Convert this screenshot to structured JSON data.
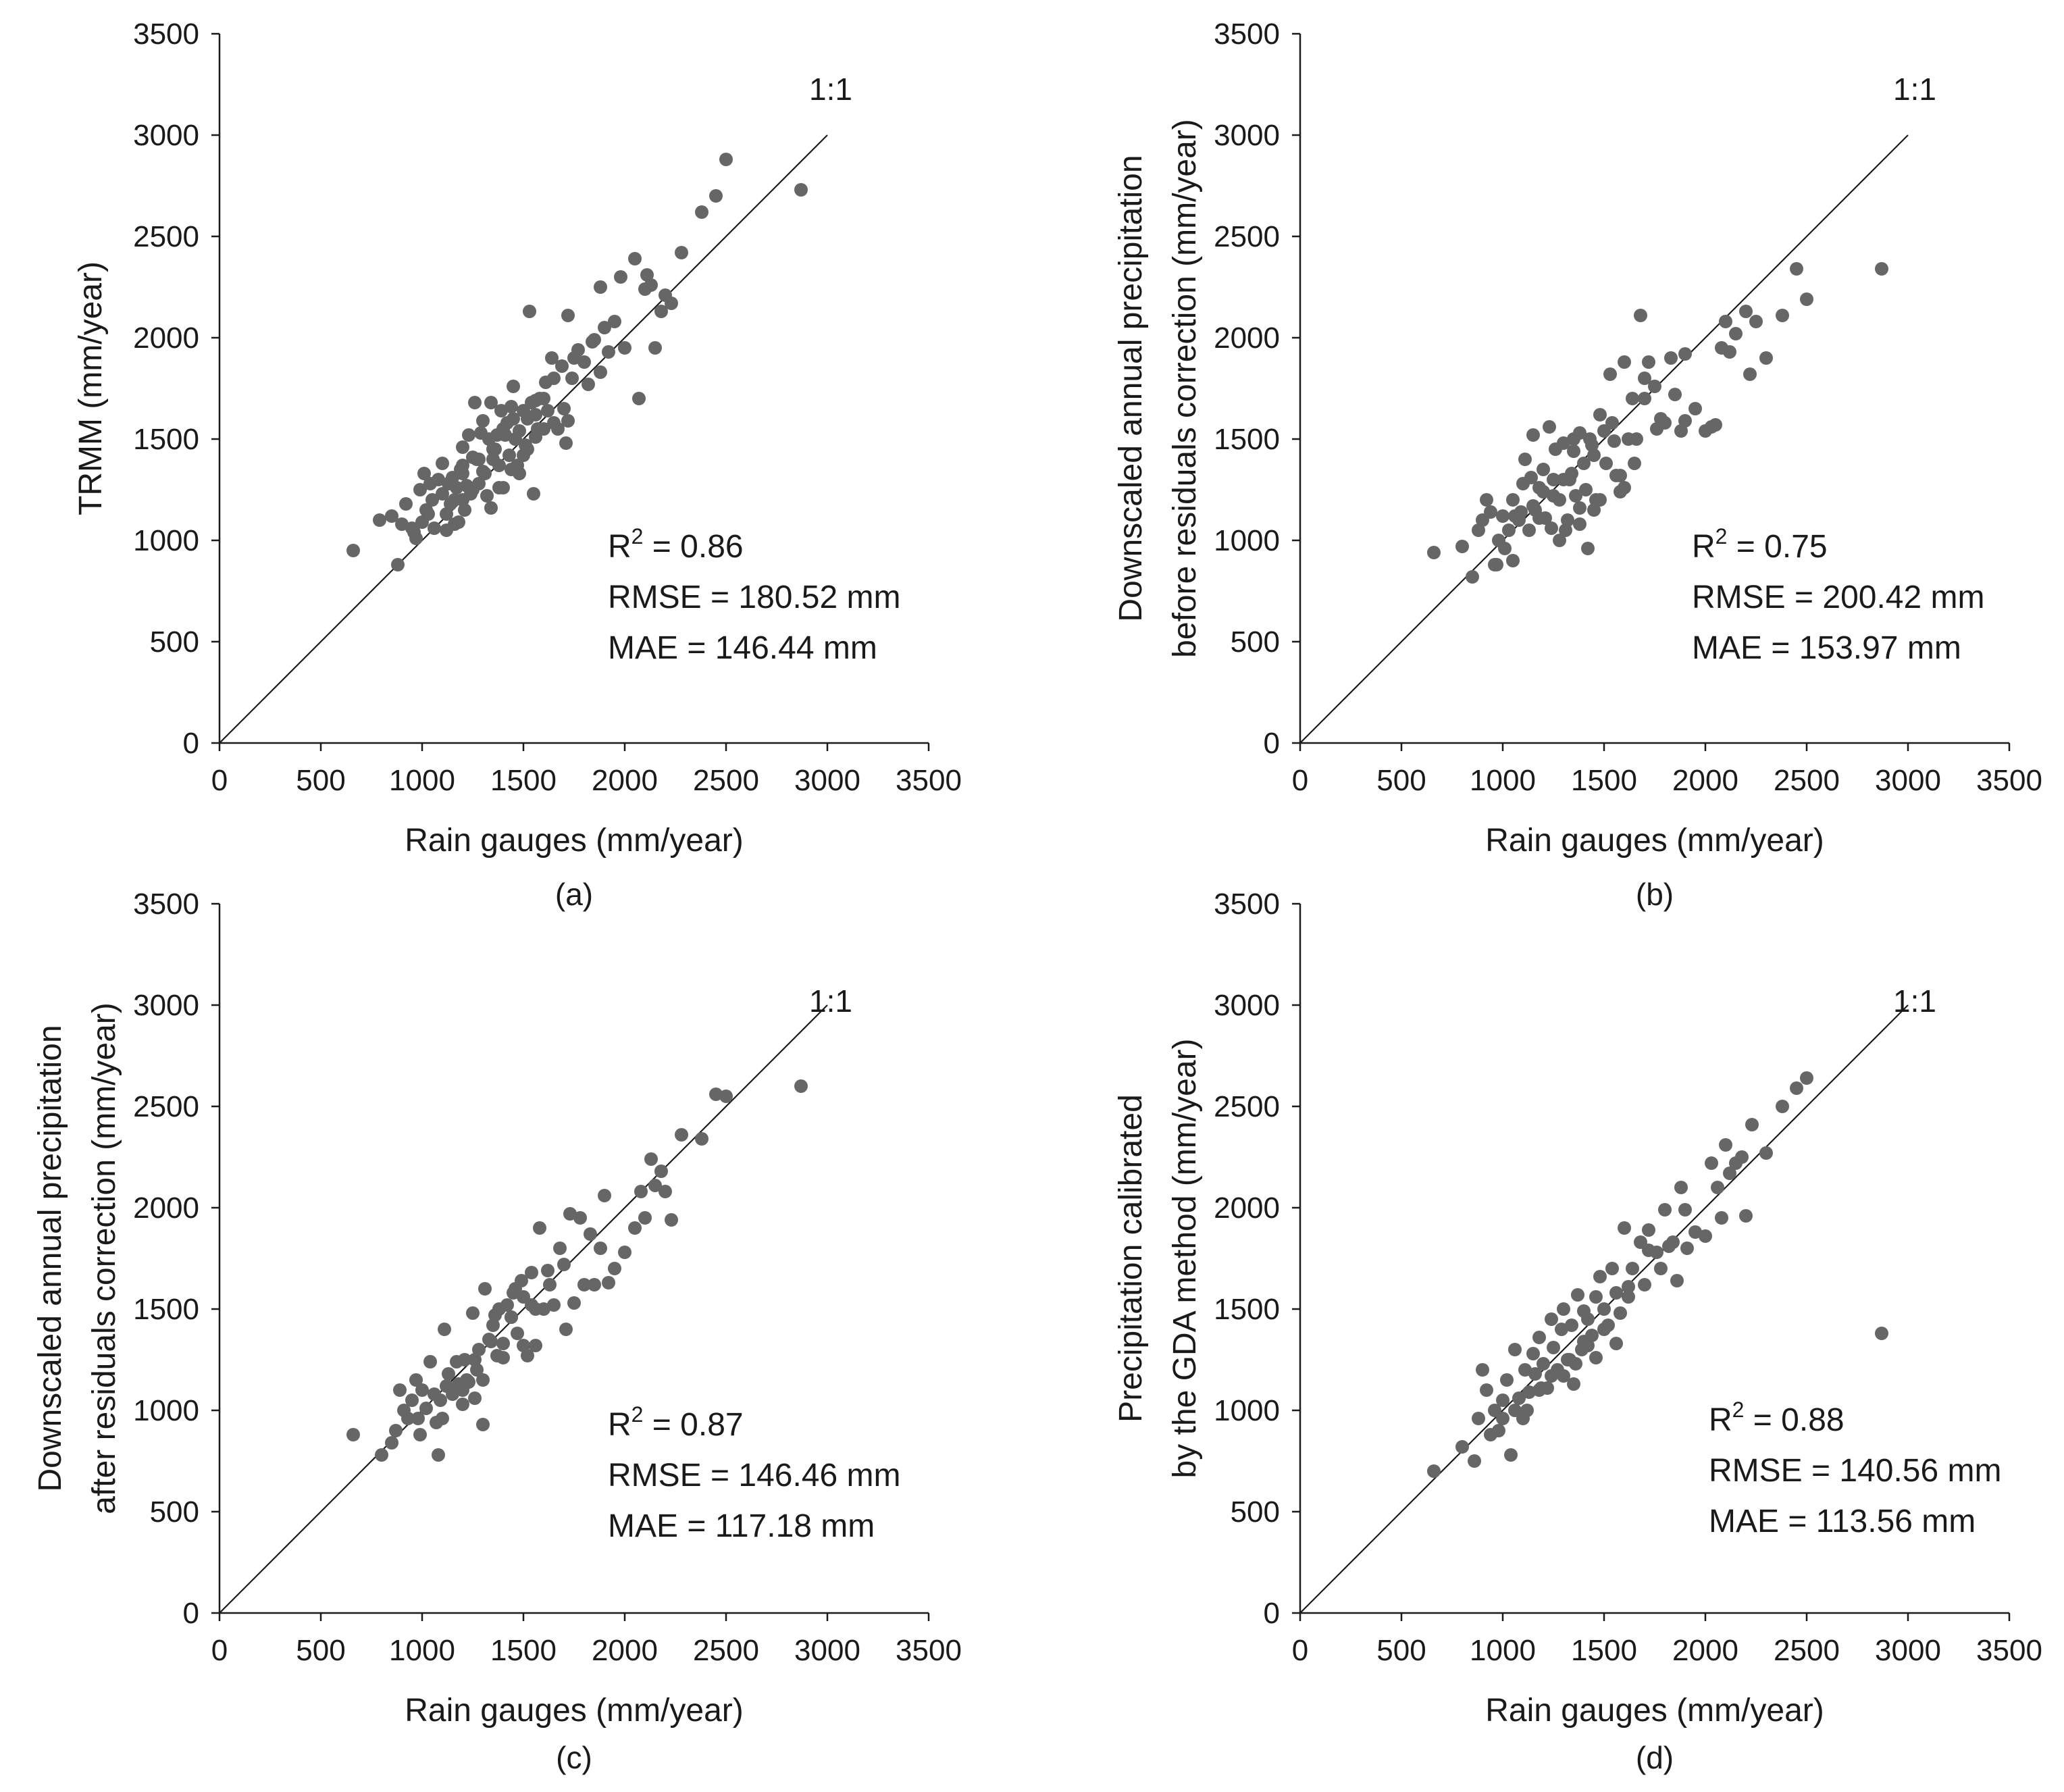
{
  "chart_data": [
    {
      "type": "scatter",
      "panel_label": "(a)",
      "xlabel": "Rain gauges (mm/year)",
      "ylabel": [
        "TRMM (mm/year)"
      ],
      "xlim": [
        0,
        3500
      ],
      "ylim": [
        0,
        3500
      ],
      "xticks": [
        "0",
        "500",
        "1000",
        "1500",
        "2000",
        "2500",
        "3000",
        "3500"
      ],
      "yticks": [
        "0",
        "500",
        "1000",
        "1500",
        "2000",
        "2500",
        "3000",
        "3500"
      ],
      "reference_line": {
        "label": "1:1",
        "from": [
          0,
          0
        ],
        "to": [
          3000,
          3000
        ]
      },
      "stats": {
        "r2_label": "R",
        "r2_exp": "2",
        "r2_value": " = 0.86",
        "rmse": "RMSE = 180.52 mm",
        "mae": "MAE = 146.44 mm"
      },
      "point_color": "#666666",
      "x": [
        660,
        790,
        850,
        880,
        900,
        920,
        950,
        970,
        990,
        1000,
        1010,
        1020,
        1040,
        1050,
        1060,
        1080,
        1100,
        1100,
        1120,
        1130,
        1150,
        1160,
        1170,
        1180,
        1190,
        1200,
        1200,
        1210,
        1230,
        1240,
        1250,
        1260,
        1270,
        1280,
        1290,
        1300,
        1310,
        1320,
        1330,
        1340,
        1350,
        1360,
        1370,
        1380,
        1390,
        1400,
        1410,
        1420,
        1430,
        1440,
        1450,
        1460,
        1470,
        1480,
        1500,
        1510,
        1520,
        1530,
        1540,
        1550,
        1560,
        1570,
        1580,
        1600,
        1610,
        1620,
        1640,
        1650,
        1670,
        1690,
        1700,
        1710,
        1720,
        1740,
        1750,
        1770,
        1800,
        1820,
        1840,
        1850,
        1880,
        1900,
        1920,
        1950,
        1980,
        2000,
        2050,
        2070,
        2100,
        2110,
        2130,
        2150,
        2180,
        2200,
        2230,
        2280,
        2380,
        2450,
        2500,
        2870,
        1200,
        1250,
        1350,
        1400,
        1450,
        1600,
        1650,
        1300,
        1380,
        1140,
        1220,
        1480,
        1560,
        1720,
        1030,
        1160,
        1560,
        1200,
        1120,
        1440,
        1500,
        1280,
        960,
        1880,
        1340,
        1520
      ],
      "y": [
        950,
        1100,
        1120,
        880,
        1080,
        1180,
        1060,
        1010,
        1250,
        1090,
        1330,
        1150,
        1280,
        1200,
        1060,
        1300,
        1230,
        1380,
        1130,
        1280,
        1310,
        1200,
        1260,
        1090,
        1350,
        1330,
        1460,
        1150,
        1520,
        1230,
        1410,
        1680,
        1400,
        1280,
        1530,
        1590,
        1330,
        1220,
        1500,
        1680,
        1400,
        1450,
        1520,
        1370,
        1640,
        1260,
        1520,
        1580,
        1420,
        1660,
        1760,
        1500,
        1370,
        1540,
        1640,
        1470,
        1600,
        2130,
        1680,
        1230,
        1620,
        1550,
        1700,
        1700,
        1780,
        1640,
        1900,
        1800,
        1550,
        1860,
        1650,
        1480,
        2110,
        1800,
        1900,
        1940,
        1880,
        1770,
        1980,
        1990,
        2250,
        2050,
        1930,
        2080,
        2300,
        1950,
        2390,
        1700,
        2240,
        2310,
        2260,
        1950,
        2130,
        2210,
        2170,
        2420,
        2620,
        2700,
        2880,
        2730,
        1370,
        1250,
        1450,
        1550,
        1600,
        1550,
        1580,
        1340,
        1260,
        1180,
        1270,
        1330,
        1690,
        1590,
        1130,
        1080,
        1510,
        1200,
        1050,
        1350,
        1420,
        1400,
        1040,
        1830,
        1160,
        1450
      ]
    },
    {
      "type": "scatter",
      "panel_label": "(b)",
      "xlabel": "Rain gauges (mm/year)",
      "ylabel": [
        "Downscaled annual precipitation",
        "before residuals correction (mm/year)"
      ],
      "xlim": [
        0,
        3500
      ],
      "ylim": [
        0,
        3500
      ],
      "xticks": [
        "0",
        "500",
        "1000",
        "1500",
        "2000",
        "2500",
        "3000",
        "3500"
      ],
      "yticks": [
        "0",
        "500",
        "1000",
        "1500",
        "2000",
        "2500",
        "3000",
        "3500"
      ],
      "reference_line": {
        "label": "1:1",
        "from": [
          0,
          0
        ],
        "to": [
          3000,
          3000
        ]
      },
      "stats": {
        "r2_label": "R",
        "r2_exp": "2",
        "r2_value": " = 0.75",
        "rmse": "RMSE = 200.42 mm",
        "mae": "MAE = 153.97 mm"
      },
      "point_color": "#666666",
      "x": [
        660,
        800,
        850,
        880,
        900,
        920,
        940,
        960,
        980,
        1000,
        1010,
        1030,
        1050,
        1080,
        1100,
        1110,
        1130,
        1150,
        1160,
        1180,
        1200,
        1210,
        1230,
        1250,
        1260,
        1280,
        1300,
        1310,
        1330,
        1350,
        1360,
        1380,
        1400,
        1410,
        1430,
        1450,
        1460,
        1480,
        1500,
        1510,
        1530,
        1550,
        1560,
        1580,
        1600,
        1620,
        1640,
        1660,
        1680,
        1700,
        1720,
        1750,
        1760,
        1780,
        1800,
        1830,
        1850,
        1880,
        1900,
        1950,
        2000,
        2050,
        2080,
        2100,
        2120,
        2150,
        2200,
        2220,
        2250,
        2300,
        2380,
        2450,
        2500,
        2870,
        1240,
        1320,
        1420,
        1180,
        1280,
        1380,
        1480,
        1580,
        1060,
        1140,
        1340,
        1440,
        1540,
        970,
        1090,
        1200,
        1300,
        1150,
        1250,
        1350,
        1450,
        1050,
        1600,
        1700,
        1900,
        2030,
        1650,
        1380
      ],
      "y": [
        940,
        970,
        820,
        1050,
        1100,
        1200,
        1140,
        880,
        1000,
        1120,
        960,
        1050,
        1200,
        1100,
        1280,
        1400,
        1050,
        1520,
        1150,
        1260,
        1350,
        1110,
        1560,
        1300,
        1450,
        1200,
        1480,
        1050,
        1300,
        1500,
        1220,
        1530,
        1380,
        1250,
        1500,
        1420,
        1200,
        1620,
        1540,
        1380,
        1820,
        1490,
        1320,
        1240,
        1880,
        1500,
        1700,
        1500,
        2110,
        1800,
        1880,
        1760,
        1550,
        1600,
        1580,
        1900,
        1720,
        1540,
        1920,
        1650,
        1540,
        1570,
        1950,
        2080,
        1930,
        2020,
        2130,
        1820,
        2080,
        1900,
        2110,
        2340,
        2190,
        2340,
        1060,
        1100,
        960,
        1110,
        1000,
        1080,
        1200,
        1320,
        1120,
        1310,
        1330,
        1470,
        1580,
        880,
        1140,
        1240,
        1300,
        1170,
        1220,
        1440,
        1150,
        900,
        1260,
        1700,
        1590,
        1560,
        1380,
        1160
      ]
    },
    {
      "type": "scatter",
      "panel_label": "(c)",
      "xlabel": "Rain gauges (mm/year)",
      "ylabel": [
        "Downscaled annual precipitation",
        "after residuals correction (mm/year)"
      ],
      "xlim": [
        0,
        3500
      ],
      "ylim": [
        0,
        3500
      ],
      "xticks": [
        "0",
        "500",
        "1000",
        "1500",
        "2000",
        "2500",
        "3000",
        "3500"
      ],
      "yticks": [
        "0",
        "500",
        "1000",
        "1500",
        "2000",
        "2500",
        "3000",
        "3500"
      ],
      "reference_line": {
        "label": "1:1",
        "from": [
          0,
          0
        ],
        "to": [
          3000,
          3000
        ]
      },
      "stats": {
        "r2_label": "R",
        "r2_exp": "2",
        "r2_value": " = 0.87",
        "rmse": "RMSE = 146.46 mm",
        "mae": "MAE = 117.18 mm"
      },
      "point_color": "#666666",
      "x": [
        660,
        800,
        850,
        870,
        890,
        910,
        930,
        950,
        970,
        990,
        1000,
        1020,
        1040,
        1060,
        1080,
        1090,
        1110,
        1130,
        1150,
        1170,
        1180,
        1200,
        1210,
        1230,
        1250,
        1270,
        1280,
        1300,
        1310,
        1330,
        1350,
        1370,
        1380,
        1400,
        1420,
        1440,
        1450,
        1470,
        1490,
        1500,
        1520,
        1540,
        1560,
        1580,
        1600,
        1630,
        1650,
        1680,
        1700,
        1730,
        1750,
        1780,
        1800,
        1830,
        1850,
        1880,
        1900,
        1950,
        2000,
        2050,
        2080,
        2100,
        2130,
        2150,
        2180,
        2200,
        2230,
        2280,
        2380,
        2450,
        2500,
        2870,
        1220,
        1260,
        1360,
        1460,
        1560,
        1160,
        1340,
        1440,
        1540,
        1100,
        1200,
        1300,
        1400,
        1500,
        980,
        1070,
        1120,
        1190,
        1620,
        1710,
        1920,
        1260
      ],
      "y": [
        880,
        780,
        840,
        900,
        1100,
        1000,
        960,
        1050,
        1150,
        880,
        1100,
        1010,
        1240,
        1080,
        780,
        1050,
        1400,
        1180,
        1080,
        1240,
        1130,
        1030,
        1250,
        1140,
        1480,
        1200,
        1300,
        1150,
        1600,
        1350,
        1420,
        1270,
        1500,
        1330,
        1520,
        1460,
        1580,
        1380,
        1640,
        1560,
        1270,
        1680,
        1500,
        1900,
        1500,
        1620,
        1520,
        1800,
        1720,
        1970,
        1530,
        1950,
        1620,
        1870,
        1620,
        1800,
        2060,
        1700,
        1780,
        1900,
        2080,
        1950,
        2240,
        2110,
        2180,
        2080,
        1940,
        2360,
        2340,
        2560,
        2550,
        2600,
        1150,
        1250,
        1470,
        1600,
        1320,
        1100,
        1340,
        1460,
        1520,
        960,
        1100,
        930,
        1260,
        1320,
        960,
        940,
        1120,
        1110,
        1690,
        1400,
        1630,
        1060
      ]
    },
    {
      "type": "scatter",
      "panel_label": "(d)",
      "xlabel": "Rain gauges (mm/year)",
      "ylabel": [
        "Precipitation calibrated",
        "by the GDA method (mm/year)"
      ],
      "xlim": [
        0,
        3500
      ],
      "ylim": [
        0,
        3500
      ],
      "xticks": [
        "0",
        "500",
        "1000",
        "1500",
        "2000",
        "2500",
        "3000",
        "3500"
      ],
      "yticks": [
        "0",
        "500",
        "1000",
        "1500",
        "2000",
        "2500",
        "3000",
        "3500"
      ],
      "reference_line": {
        "label": "1:1",
        "from": [
          0,
          0
        ],
        "to": [
          3000,
          3000
        ]
      },
      "stats": {
        "r2_label": "R",
        "r2_exp": "2",
        "r2_value": " = 0.88",
        "rmse": "RMSE = 140.56 mm",
        "mae": "MAE = 113.56 mm"
      },
      "point_color": "#666666",
      "x": [
        660,
        800,
        860,
        880,
        900,
        920,
        940,
        960,
        980,
        1000,
        1020,
        1040,
        1060,
        1080,
        1100,
        1110,
        1130,
        1150,
        1160,
        1180,
        1200,
        1220,
        1240,
        1250,
        1270,
        1290,
        1300,
        1320,
        1340,
        1350,
        1370,
        1390,
        1400,
        1420,
        1440,
        1460,
        1480,
        1500,
        1520,
        1540,
        1560,
        1580,
        1600,
        1620,
        1640,
        1680,
        1700,
        1720,
        1760,
        1780,
        1800,
        1840,
        1860,
        1880,
        1900,
        1950,
        2000,
        2030,
        2060,
        2100,
        2120,
        2150,
        2180,
        2200,
        2230,
        2300,
        2380,
        2450,
        2500,
        2870,
        1120,
        1240,
        1360,
        1460,
        1560,
        1000,
        1180,
        1300,
        1400,
        1500,
        1060,
        1190,
        1330,
        1420,
        1620,
        1720,
        1820,
        1910,
        2080
      ],
      "y": [
        700,
        820,
        750,
        960,
        1200,
        1100,
        880,
        1000,
        900,
        1050,
        1150,
        780,
        1300,
        1060,
        960,
        1200,
        1090,
        1280,
        1180,
        1360,
        1230,
        1110,
        1450,
        1310,
        1200,
        1400,
        1500,
        1250,
        1420,
        1130,
        1570,
        1300,
        1490,
        1450,
        1370,
        1560,
        1660,
        1500,
        1420,
        1700,
        1580,
        1480,
        1900,
        1560,
        1700,
        1830,
        1620,
        1790,
        1780,
        1700,
        1990,
        1830,
        1640,
        2100,
        1990,
        1880,
        1860,
        2220,
        2100,
        2310,
        2170,
        2220,
        2250,
        1960,
        2410,
        2270,
        2500,
        2590,
        2640,
        1380,
        1000,
        1170,
        1230,
        1260,
        1330,
        960,
        1100,
        1170,
        1340,
        1400,
        1000,
        1110,
        1250,
        1320,
        1610,
        1890,
        1810,
        1800,
        1950
      ]
    }
  ]
}
